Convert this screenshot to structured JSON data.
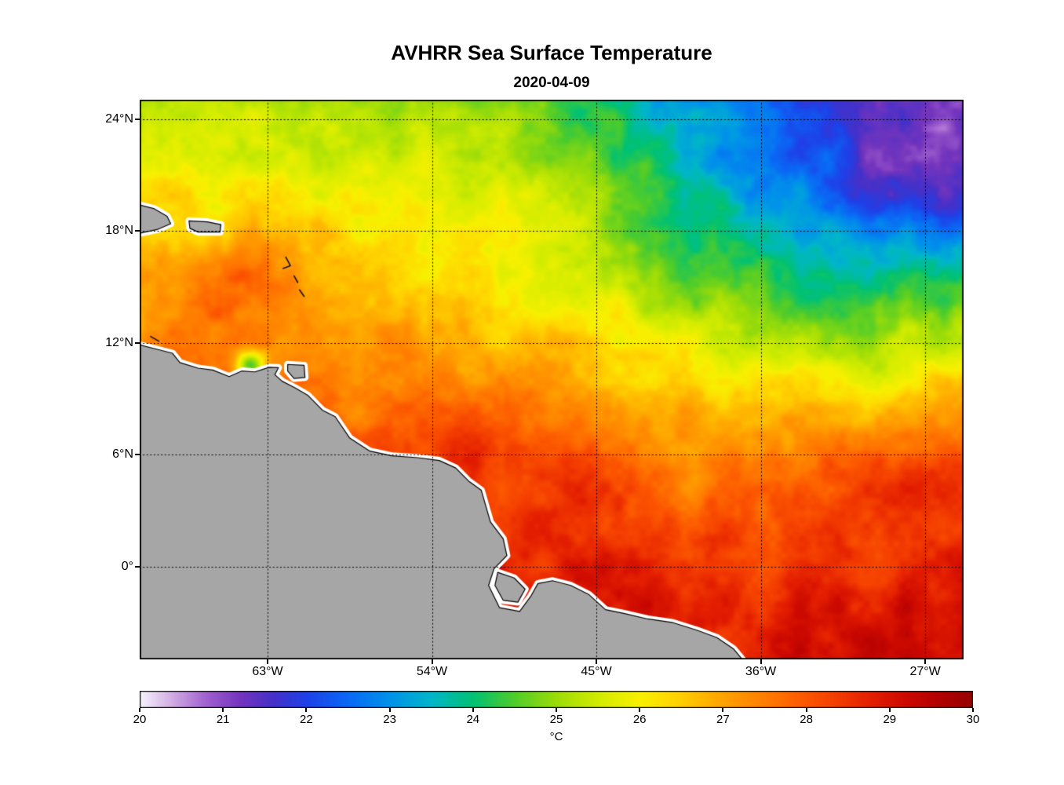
{
  "chart_data": {
    "type": "heatmap",
    "title": "AVHRR Sea Surface Temperature",
    "subtitle": "2020-04-09",
    "map": {
      "lon_min": -70.0,
      "lon_max": -24.9,
      "lat_min": -4.97,
      "lat_max": 25.05,
      "x_ticks": [
        {
          "lon": -63,
          "label": "63°W"
        },
        {
          "lon": -54,
          "label": "54°W"
        },
        {
          "lon": -45,
          "label": "45°W"
        },
        {
          "lon": -36,
          "label": "36°W"
        },
        {
          "lon": -27,
          "label": "27°W"
        }
      ],
      "y_ticks": [
        {
          "lat": 24,
          "label": "24°N"
        },
        {
          "lat": 18,
          "label": "18°N"
        },
        {
          "lat": 12,
          "label": "12°N"
        },
        {
          "lat": 6,
          "label": "6°N"
        },
        {
          "lat": 0,
          "label": "0°"
        }
      ],
      "grid_lons": [
        -63,
        -54,
        -45,
        -36,
        -27
      ],
      "grid_lats": [
        24,
        18,
        12,
        6,
        0
      ]
    },
    "sst_grid": {
      "unit": "°C",
      "lons": [
        -70,
        -65,
        -60,
        -55,
        -50,
        -45,
        -40,
        -35,
        -30,
        -25
      ],
      "lats": [
        -5,
        0,
        5,
        10,
        15,
        20,
        25
      ],
      "values_c": [
        [
          29.0,
          29.0,
          29.0,
          29.0,
          29.0,
          29.0,
          28.9,
          29.0,
          29.1,
          29.3
        ],
        [
          28.6,
          28.6,
          28.6,
          28.6,
          28.7,
          28.8,
          28.6,
          28.4,
          28.6,
          28.9
        ],
        [
          28.2,
          28.2,
          28.1,
          28.2,
          28.3,
          27.8,
          27.5,
          27.9,
          28.1,
          28.4
        ],
        [
          27.7,
          27.7,
          27.6,
          27.4,
          27.1,
          26.8,
          26.4,
          26.1,
          25.9,
          26.3
        ],
        [
          27.1,
          27.5,
          27.1,
          26.6,
          26.1,
          25.6,
          24.8,
          24.1,
          23.9,
          24.4
        ],
        [
          26.2,
          26.1,
          26.0,
          25.8,
          25.5,
          24.9,
          23.9,
          22.9,
          22.2,
          21.9
        ],
        [
          25.2,
          25.3,
          25.0,
          25.2,
          24.6,
          24.0,
          23.1,
          22.1,
          21.5,
          21.2
        ]
      ]
    },
    "anomalies": [
      {
        "lon": -63.9,
        "lat": 10.85,
        "r": 0.75,
        "d": -2.8
      },
      {
        "lon": -52.5,
        "lat": 7.0,
        "r": 2.0,
        "d": 0.45
      },
      {
        "lon": -45.0,
        "lat": 4.0,
        "r": 2.2,
        "d": 0.4
      },
      {
        "lon": -28.5,
        "lat": 21.5,
        "r": 3.2,
        "d": -0.45
      },
      {
        "lon": -64.0,
        "lat": 15.8,
        "r": 2.0,
        "d": 0.3
      }
    ],
    "noise_octaves": [
      [
        0.5,
        0.38
      ],
      [
        1.4,
        0.22
      ],
      [
        3.1,
        0.1
      ]
    ],
    "colormap": [
      [
        20.0,
        "#f6f2fa"
      ],
      [
        20.4,
        "#cfa9e2"
      ],
      [
        20.8,
        "#a060cf"
      ],
      [
        21.2,
        "#7434bd"
      ],
      [
        21.6,
        "#4530c8"
      ],
      [
        22.0,
        "#1e40e8"
      ],
      [
        22.5,
        "#0a68f5"
      ],
      [
        23.0,
        "#0092ea"
      ],
      [
        23.5,
        "#00b6c8"
      ],
      [
        24.0,
        "#00c173"
      ],
      [
        24.5,
        "#4fcc2a"
      ],
      [
        25.0,
        "#9cdc08"
      ],
      [
        25.5,
        "#d2ec00"
      ],
      [
        26.0,
        "#f8f000"
      ],
      [
        26.4,
        "#ffd600"
      ],
      [
        26.8,
        "#ffb300"
      ],
      [
        27.2,
        "#ff9400"
      ],
      [
        27.6,
        "#ff7600"
      ],
      [
        28.0,
        "#fc5600"
      ],
      [
        28.4,
        "#f23a00"
      ],
      [
        28.8,
        "#e21d00"
      ],
      [
        29.2,
        "#cc0900"
      ],
      [
        29.6,
        "#b20000"
      ],
      [
        30.0,
        "#960000"
      ]
    ],
    "colorbar": {
      "min": 20,
      "max": 30,
      "tick_labels": [
        "20",
        "21",
        "22",
        "23",
        "24",
        "25",
        "26",
        "27",
        "28",
        "29",
        "30"
      ],
      "unit": "°C"
    },
    "land": {
      "fill": "#a6a6a6",
      "coast_halo": "#ffffff",
      "outline": "#000000",
      "polygons": [
        {
          "name": "south-america",
          "pts": [
            [
              -70.4,
              12.0
            ],
            [
              -69.0,
              11.65
            ],
            [
              -68.2,
              11.45
            ],
            [
              -67.8,
              10.95
            ],
            [
              -66.8,
              10.65
            ],
            [
              -66.0,
              10.55
            ],
            [
              -65.1,
              10.2
            ],
            [
              -64.4,
              10.5
            ],
            [
              -63.7,
              10.45
            ],
            [
              -62.9,
              10.7
            ],
            [
              -62.4,
              10.68
            ],
            [
              -62.6,
              10.3
            ],
            [
              -62.2,
              9.95
            ],
            [
              -61.5,
              9.6
            ],
            [
              -60.8,
              9.2
            ],
            [
              -60.0,
              8.4
            ],
            [
              -59.3,
              8.05
            ],
            [
              -58.5,
              6.9
            ],
            [
              -57.4,
              6.2
            ],
            [
              -56.2,
              5.95
            ],
            [
              -54.8,
              5.85
            ],
            [
              -53.6,
              5.7
            ],
            [
              -52.7,
              5.3
            ],
            [
              -52.0,
              4.6
            ],
            [
              -51.3,
              4.1
            ],
            [
              -50.8,
              2.4
            ],
            [
              -50.1,
              1.5
            ],
            [
              -49.9,
              0.6
            ],
            [
              -50.6,
              -0.1
            ],
            [
              -50.9,
              -1.0
            ],
            [
              -50.3,
              -2.2
            ],
            [
              -49.2,
              -2.4
            ],
            [
              -48.6,
              -1.6
            ],
            [
              -48.2,
              -0.9
            ],
            [
              -47.4,
              -0.75
            ],
            [
              -46.4,
              -1.0
            ],
            [
              -45.4,
              -1.5
            ],
            [
              -44.5,
              -2.3
            ],
            [
              -43.5,
              -2.5
            ],
            [
              -42.2,
              -2.8
            ],
            [
              -40.8,
              -3.0
            ],
            [
              -39.5,
              -3.4
            ],
            [
              -38.4,
              -3.8
            ],
            [
              -37.5,
              -4.4
            ],
            [
              -36.9,
              -5.1
            ],
            [
              -36.5,
              -5.8
            ],
            [
              -71.0,
              -5.8
            ]
          ]
        },
        {
          "name": "marajo-island",
          "pts": [
            [
              -50.4,
              -0.3
            ],
            [
              -49.5,
              -0.6
            ],
            [
              -48.9,
              -1.2
            ],
            [
              -49.3,
              -1.9
            ],
            [
              -50.1,
              -1.8
            ],
            [
              -50.55,
              -1.0
            ]
          ]
        },
        {
          "name": "trinidad-island",
          "pts": [
            [
              -61.9,
              10.85
            ],
            [
              -61.0,
              10.8
            ],
            [
              -60.95,
              10.15
            ],
            [
              -61.55,
              10.1
            ],
            [
              -61.9,
              10.5
            ]
          ]
        },
        {
          "name": "hispaniola-east",
          "pts": [
            [
              -70.4,
              19.5
            ],
            [
              -69.2,
              19.2
            ],
            [
              -68.5,
              18.8
            ],
            [
              -68.3,
              18.4
            ],
            [
              -69.0,
              18.1
            ],
            [
              -70.4,
              17.8
            ]
          ]
        },
        {
          "name": "puerto-rico",
          "pts": [
            [
              -67.3,
              18.55
            ],
            [
              -66.3,
              18.5
            ],
            [
              -65.55,
              18.35
            ],
            [
              -65.6,
              17.95
            ],
            [
              -66.8,
              17.95
            ],
            [
              -67.25,
              18.15
            ]
          ]
        }
      ],
      "island_lines": [
        [
          [
            -62.0,
            16.6
          ],
          [
            -61.75,
            16.15
          ],
          [
            -62.15,
            16.0
          ]
        ],
        [
          [
            -61.55,
            15.6
          ],
          [
            -61.35,
            15.25
          ]
        ],
        [
          [
            -61.25,
            14.85
          ],
          [
            -61.0,
            14.5
          ]
        ],
        [
          [
            -69.4,
            12.35
          ],
          [
            -68.95,
            12.1
          ]
        ]
      ]
    }
  }
}
